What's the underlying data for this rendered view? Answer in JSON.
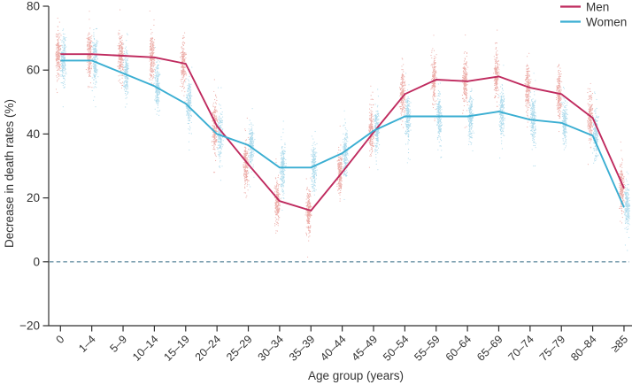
{
  "chart_data": {
    "type": "scatter",
    "subtype": "jittered-strip-clouds-with-mean-lines",
    "title": "",
    "xlabel": "Age group (years)",
    "ylabel": "Decrease in death rates (%)",
    "ylim": [
      -20,
      80
    ],
    "yticks": [
      -20,
      0,
      20,
      40,
      60,
      80
    ],
    "ytick_labels": [
      "−20",
      "0",
      "20",
      "40",
      "60",
      "80"
    ],
    "categories": [
      "0",
      "1–4",
      "5–9",
      "10–14",
      "15–19",
      "20–24",
      "25–29",
      "30–34",
      "35–39",
      "40–44",
      "45–49",
      "50–54",
      "55–59",
      "60–64",
      "65–69",
      "70–74",
      "75–79",
      "80–84",
      "≥85"
    ],
    "series": [
      {
        "name": "Men",
        "line_color": "#bf2a5e",
        "dot_color": "#eaa49f",
        "values": [
          65,
          65,
          64.5,
          64,
          62,
          42.5,
          30.5,
          19,
          16,
          28,
          40.5,
          52.5,
          57,
          56.5,
          58,
          54.5,
          52.5,
          45,
          23
        ]
      },
      {
        "name": "Women",
        "line_color": "#3aaed2",
        "dot_color": "#a6d7ea",
        "values": [
          63,
          63,
          59,
          55,
          49.5,
          40,
          36.5,
          29.5,
          29.5,
          34,
          41,
          45.5,
          45.5,
          45.5,
          47,
          44.5,
          43.5,
          39.5,
          17
        ]
      }
    ],
    "zero_line": {
      "value": 0,
      "style": "dashed",
      "color": "#6b93a6"
    },
    "scatter_sigma": 3.5,
    "legend": {
      "position": "top-right",
      "entries": [
        "Men",
        "Women"
      ]
    },
    "grid": false
  },
  "colors": {
    "axis": "#2f2f2f",
    "text": "#333333",
    "background": "#ffffff"
  }
}
